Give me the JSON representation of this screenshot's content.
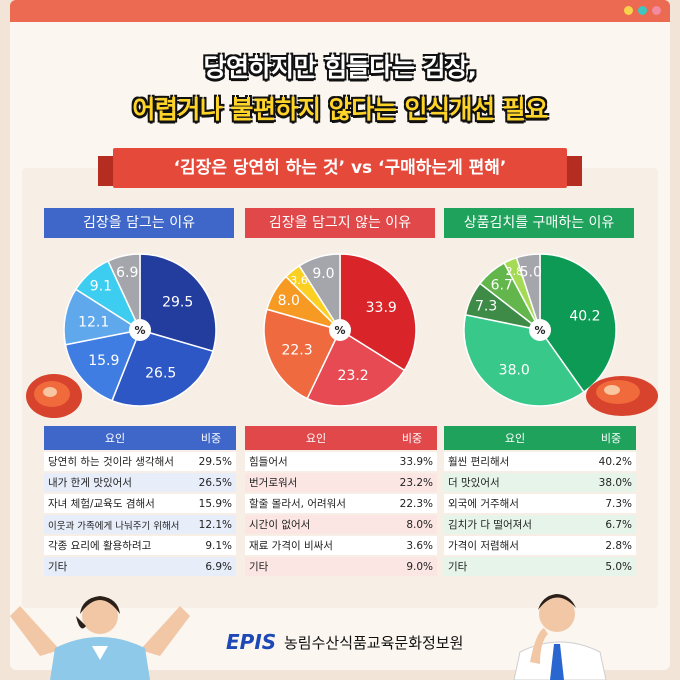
{
  "header": {
    "title_line1": "당연하지만 힘들다는 김장,",
    "title_line2": "어렵거나 불편하지 않다는 인식개선 필요",
    "ribbon": "‘김장은 당연히 하는 것’ vs ‘구매하는게 편해’"
  },
  "footer": {
    "logo": "EPIS",
    "org": "농림수산식품교육문화정보원"
  },
  "center_label": "%",
  "table_headers": {
    "factor": "요인",
    "share": "비중"
  },
  "colors": {
    "blue": "#3f67c9",
    "red": "#e0484a",
    "green": "#1fa25c",
    "frame_bar": "#ec6a52",
    "page_bg": "#f2e4d6"
  },
  "chart_data": [
    {
      "type": "pie",
      "title": "김장을 담그는 이유",
      "labels": [
        "당연히 하는 것이라 생각해서",
        "내가 한게 맛있어서",
        "자녀 체험/교육도 겸해서",
        "이웃과 가족에게 나눠주기 위해서",
        "각종 요리에 활용하려고",
        "기타"
      ],
      "values": [
        29.5,
        26.5,
        15.9,
        12.1,
        9.1,
        6.9
      ],
      "value_text": [
        "29.5%",
        "26.5%",
        "15.9%",
        "12.1%",
        "9.1%",
        "6.9%"
      ],
      "colors": [
        "#233d9e",
        "#2c57c4",
        "#3f7de3",
        "#60a8ec",
        "#3ccdf0",
        "#a4a6ab"
      ]
    },
    {
      "type": "pie",
      "title": "김장을 담그지 않는 이유",
      "labels": [
        "힘들어서",
        "번거로워서",
        "할줄 몰라서, 어려워서",
        "시간이 없어서",
        "재료 가격이 비싸서",
        "기타"
      ],
      "values": [
        33.9,
        23.2,
        22.3,
        8.0,
        3.6,
        9.0
      ],
      "value_text": [
        "33.9%",
        "23.2%",
        "22.3%",
        "8.0%",
        "3.6%",
        "9.0%"
      ],
      "colors": [
        "#d9252a",
        "#e74a52",
        "#ef6a3e",
        "#f69a23",
        "#fbd023",
        "#a4a6ab"
      ]
    },
    {
      "type": "pie",
      "title": "상품김치를 구매하는 이유",
      "labels": [
        "훨씬 편리해서",
        "더 맛있어서",
        "외국에 거주해서",
        "김치가 다 떨어져서",
        "가격이 저렴해서",
        "기타"
      ],
      "values": [
        40.2,
        38.0,
        7.3,
        6.7,
        2.8,
        5.0
      ],
      "value_text": [
        "40.2%",
        "38.0%",
        "7.3%",
        "6.7%",
        "2.8%",
        "5.0%"
      ],
      "colors": [
        "#0d9a55",
        "#38c88a",
        "#3e8a47",
        "#62b64c",
        "#a5da55",
        "#a4a6ab"
      ]
    }
  ]
}
